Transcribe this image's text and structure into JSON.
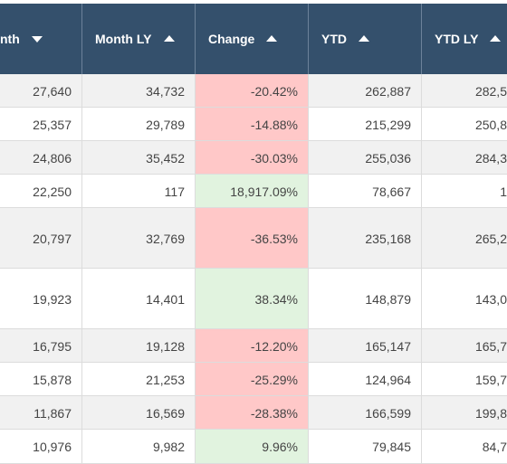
{
  "table": {
    "headers": [
      "nth",
      "Month LY",
      "Change",
      "YTD",
      "YTD LY"
    ],
    "rows": [
      [
        "27,640",
        "34,732",
        "-20.42%",
        "262,887",
        "282,5"
      ],
      [
        "25,357",
        "29,789",
        "-14.88%",
        "215,299",
        "250,8"
      ],
      [
        "24,806",
        "35,452",
        "-30.03%",
        "255,036",
        "284,3"
      ],
      [
        "22,250",
        "117",
        "18,917.09%",
        "78,667",
        "1"
      ],
      [
        "20,797",
        "32,769",
        "-36.53%",
        "235,168",
        "265,2"
      ],
      [
        "19,923",
        "14,401",
        "38.34%",
        "148,879",
        "143,0"
      ],
      [
        "16,795",
        "19,128",
        "-12.20%",
        "165,147",
        "165,7"
      ],
      [
        "15,878",
        "21,253",
        "-25.29%",
        "124,964",
        "159,7"
      ],
      [
        "11,867",
        "16,569",
        "-28.38%",
        "166,599",
        "199,8"
      ],
      [
        "10,976",
        "9,982",
        "9.96%",
        "79,845",
        "84,7"
      ]
    ]
  }
}
